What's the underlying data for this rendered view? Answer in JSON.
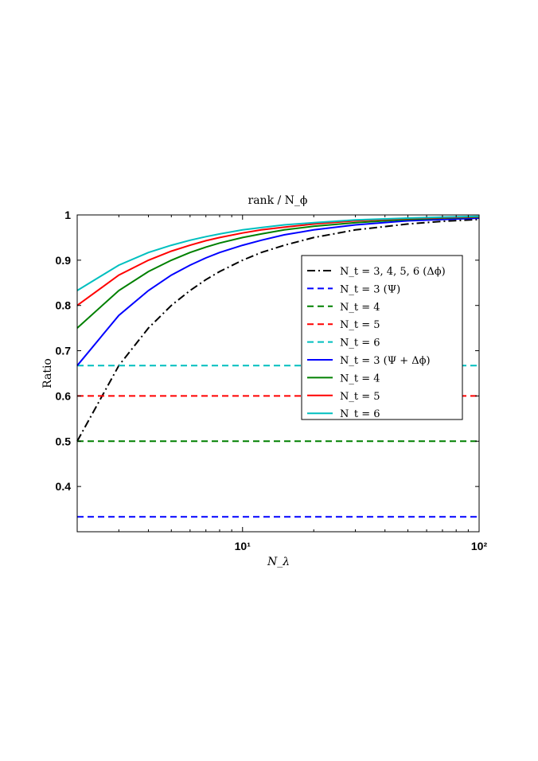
{
  "chart_data": {
    "type": "line",
    "title": "rank / N_ϕ",
    "xlabel": "N_λ",
    "ylabel": "Ratio",
    "xscale": "log",
    "xlim": [
      2,
      100
    ],
    "ylim": [
      0.3,
      1
    ],
    "grid": false,
    "legend_position": "right",
    "yticks": [
      0.4,
      0.5,
      0.6,
      0.7,
      0.8,
      0.9,
      1
    ],
    "ytick_labels": [
      "0.4",
      "0.5",
      "0.6",
      "0.7",
      "0.8",
      "0.9",
      "1"
    ],
    "xticks": [
      10,
      100
    ],
    "xtick_labels": [
      "10¹",
      "10²"
    ],
    "x": [
      2,
      3,
      4,
      5,
      6,
      7,
      8,
      10,
      12,
      15,
      20,
      30,
      50,
      70,
      100
    ],
    "series": [
      {
        "name": "N_t = 3, 4, 5, 6 (Δϕ)",
        "color": "#000000",
        "style": "dashdot",
        "values": [
          0.5,
          0.667,
          0.75,
          0.8,
          0.833,
          0.857,
          0.875,
          0.9,
          0.917,
          0.933,
          0.95,
          0.967,
          0.98,
          0.986,
          0.99
        ]
      },
      {
        "name": "N_t = 3 (Ψ)",
        "color": "#0000ff",
        "style": "dashed",
        "values": [
          0.333,
          0.333,
          0.333,
          0.333,
          0.333,
          0.333,
          0.333,
          0.333,
          0.333,
          0.333,
          0.333,
          0.333,
          0.333,
          0.333,
          0.333
        ]
      },
      {
        "name": "N_t = 4",
        "color": "#008000",
        "style": "dashed",
        "values": [
          0.5,
          0.5,
          0.5,
          0.5,
          0.5,
          0.5,
          0.5,
          0.5,
          0.5,
          0.5,
          0.5,
          0.5,
          0.5,
          0.5,
          0.5
        ]
      },
      {
        "name": "N_t = 5",
        "color": "#ff0000",
        "style": "dashed",
        "values": [
          0.6,
          0.6,
          0.6,
          0.6,
          0.6,
          0.6,
          0.6,
          0.6,
          0.6,
          0.6,
          0.6,
          0.6,
          0.6,
          0.6,
          0.6
        ]
      },
      {
        "name": "N_t = 6",
        "color": "#00bfbf",
        "style": "dashed",
        "values": [
          0.667,
          0.667,
          0.667,
          0.667,
          0.667,
          0.667,
          0.667,
          0.667,
          0.667,
          0.667,
          0.667,
          0.667,
          0.667,
          0.667,
          0.667
        ]
      },
      {
        "name": "N_t = 3 (Ψ + Δϕ)",
        "color": "#0000ff",
        "style": "solid",
        "values": [
          0.667,
          0.778,
          0.833,
          0.867,
          0.889,
          0.905,
          0.917,
          0.933,
          0.944,
          0.956,
          0.967,
          0.978,
          0.987,
          0.99,
          0.993
        ]
      },
      {
        "name": "N_t = 4",
        "color": "#008000",
        "style": "solid",
        "values": [
          0.75,
          0.833,
          0.875,
          0.9,
          0.917,
          0.929,
          0.938,
          0.95,
          0.958,
          0.967,
          0.975,
          0.983,
          0.99,
          0.993,
          0.995
        ]
      },
      {
        "name": "N_t = 5",
        "color": "#ff0000",
        "style": "solid",
        "values": [
          0.8,
          0.867,
          0.9,
          0.92,
          0.933,
          0.943,
          0.95,
          0.96,
          0.967,
          0.973,
          0.98,
          0.987,
          0.992,
          0.994,
          0.996
        ]
      },
      {
        "name": "N_t = 6",
        "color": "#00bfbf",
        "style": "solid",
        "values": [
          0.833,
          0.889,
          0.917,
          0.933,
          0.944,
          0.952,
          0.958,
          0.967,
          0.972,
          0.978,
          0.983,
          0.989,
          0.993,
          0.995,
          0.997
        ]
      }
    ]
  }
}
